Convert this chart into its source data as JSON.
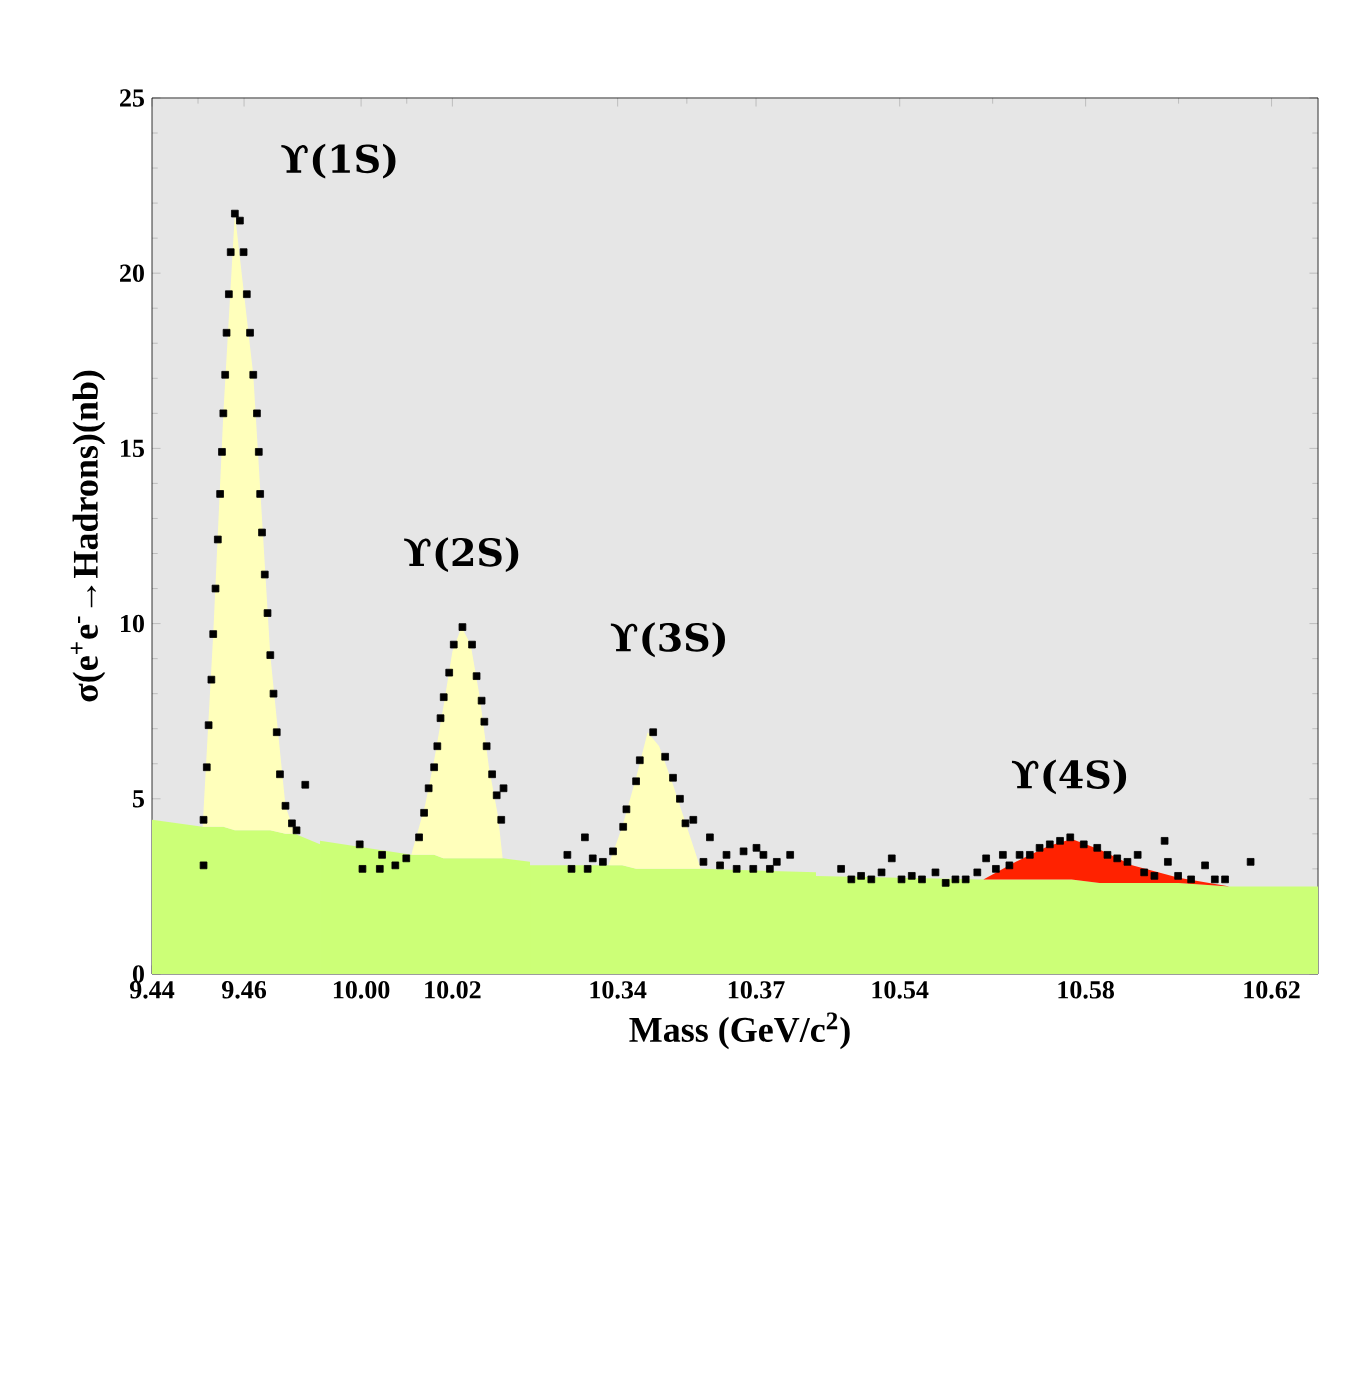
{
  "chart_data": [
    {
      "type": "area",
      "stacked": true,
      "ylabel": "σ(e$^{+}$e$^{-}$→Hadrons)(nb)",
      "xlim": [
        9.44,
        9.4765
      ],
      "xticks": [
        9.44,
        9.46
      ],
      "ylim": [
        0,
        25
      ],
      "yticks": [
        0,
        5,
        10,
        15,
        20,
        25
      ],
      "annotations": [
        {
          "text": "ϒ(1S)",
          "x": 9.4585,
          "y": 21.7
        }
      ],
      "series": [
        {
          "type": "area",
          "color": "#ccff77",
          "x": [
            9.44,
            9.451,
            9.4533,
            9.4555,
            9.458,
            9.462,
            9.4657,
            9.469,
            9.471,
            9.4765
          ],
          "values": [
            4.4,
            4.2,
            4.2,
            4.2,
            4.1,
            4.1,
            4.1,
            4.0,
            4.0,
            3.7
          ]
        },
        {
          "type": "area",
          "color": "#ffffbb",
          "x": [
            9.44,
            9.451,
            9.4533,
            9.4555,
            9.458,
            9.462,
            9.4657,
            9.469,
            9.471,
            9.4765
          ],
          "values": [
            0,
            0,
            5.5,
            11.8,
            17.6,
            13.0,
            5.0,
            0.8,
            0,
            0
          ]
        },
        {
          "type": "scatter",
          "color": "#000000",
          "marker": "square",
          "x": [
            9.4512,
            9.4512,
            9.4519,
            9.4523,
            9.4529,
            9.4533,
            9.4538,
            9.4543,
            9.4548,
            9.4552,
            9.4555,
            9.4559,
            9.4562,
            9.4567,
            9.4571,
            9.458,
            9.4591,
            9.4599,
            9.4606,
            9.4613,
            9.462,
            9.4628,
            9.4632,
            9.4635,
            9.4639,
            9.4645,
            9.4651,
            9.4657,
            9.4664,
            9.4671,
            9.4678,
            9.469,
            9.4704,
            9.4714,
            9.4733
          ],
          "values": [
            3.1,
            4.4,
            5.9,
            7.1,
            8.4,
            9.7,
            11.0,
            12.4,
            13.7,
            14.9,
            16.0,
            17.1,
            18.3,
            19.4,
            20.6,
            21.7,
            21.5,
            20.6,
            19.4,
            18.3,
            17.1,
            16.0,
            14.9,
            13.7,
            12.6,
            11.4,
            10.3,
            9.1,
            8.0,
            6.9,
            5.7,
            4.8,
            4.3,
            4.1,
            5.4
          ]
        }
      ]
    },
    {
      "type": "area",
      "stacked": true,
      "tick_labels": "x",
      "xlim": [
        9.991,
        10.037
      ],
      "xticks": [
        {
          "value": 10.0,
          "label": "10.00"
        },
        10.02
      ],
      "ylim": [
        0,
        25
      ],
      "yticks": [
        0,
        5,
        10,
        15,
        20,
        25
      ],
      "annotations": [
        {
          "text": "ϒ(2S)",
          "x": 10.0222,
          "y": 9.9
        }
      ],
      "series": [
        {
          "type": "area",
          "color": "#ccff77",
          "x": [
            9.991,
            10.011,
            10.014,
            10.016,
            10.018,
            10.02,
            10.022,
            10.024,
            10.026,
            10.028,
            10.03,
            10.031,
            10.037
          ],
          "values": [
            3.8,
            3.4,
            3.4,
            3.4,
            3.3,
            3.3,
            3.3,
            3.3,
            3.3,
            3.3,
            3.3,
            3.3,
            3.2
          ]
        },
        {
          "type": "area",
          "color": "#ffffbb",
          "x": [
            9.991,
            10.011,
            10.014,
            10.016,
            10.018,
            10.02,
            10.022,
            10.024,
            10.026,
            10.028,
            10.03,
            10.031,
            10.037
          ],
          "values": [
            0,
            0,
            1.4,
            2.7,
            4.3,
            5.9,
            6.6,
            6.1,
            4.6,
            2.6,
            1.2,
            0,
            0
          ]
        },
        {
          "type": "scatter",
          "color": "#000000",
          "marker": "square",
          "x": [
            9.9997,
            10.0003,
            10.0041,
            10.0046,
            10.0075,
            10.0099,
            10.0127,
            10.0138,
            10.0148,
            10.016,
            10.0167,
            10.0174,
            10.0181,
            10.0193,
            10.0203,
            10.0222,
            10.0243,
            10.0253,
            10.0264,
            10.027,
            10.0275,
            10.0287,
            10.0297,
            10.0312,
            10.0307
          ],
          "values": [
            3.7,
            3.0,
            3.0,
            3.4,
            3.1,
            3.3,
            3.9,
            4.6,
            5.3,
            5.9,
            6.5,
            7.3,
            7.9,
            8.6,
            9.4,
            9.9,
            9.4,
            8.5,
            7.8,
            7.2,
            6.5,
            5.7,
            5.1,
            5.3,
            4.4
          ]
        }
      ]
    },
    {
      "type": "area",
      "stacked": true,
      "tick_labels": "x",
      "xlabel": "Mass (GeV/c$^{2}$)",
      "xlim": [
        10.321,
        10.383
      ],
      "xticks": [
        10.34,
        10.37
      ],
      "ylim": [
        0,
        25
      ],
      "yticks": [
        0,
        5,
        10,
        15,
        20,
        25
      ],
      "annotations": [
        {
          "text": "ϒ(3S)",
          "x": 10.3477,
          "y": 6.9
        }
      ],
      "series": [
        {
          "type": "area",
          "color": "#ccff77",
          "x": [
            10.321,
            10.338,
            10.341,
            10.344,
            10.3465,
            10.349,
            10.352,
            10.355,
            10.358,
            10.383
          ],
          "values": [
            3.1,
            3.1,
            3.1,
            3.0,
            3.0,
            3.0,
            3.0,
            3.0,
            3.0,
            2.9
          ]
        },
        {
          "type": "area",
          "color": "#ffffbb",
          "x": [
            10.321,
            10.338,
            10.341,
            10.344,
            10.3465,
            10.349,
            10.352,
            10.355,
            10.358,
            10.383
          ],
          "values": [
            0,
            0,
            1.1,
            2.6,
            3.9,
            3.5,
            2.4,
            1.2,
            0,
            0
          ]
        },
        {
          "type": "scatter",
          "color": "#000000",
          "marker": "square",
          "x": [
            10.3291,
            10.33,
            10.3329,
            10.3335,
            10.3346,
            10.3368,
            10.339,
            10.3412,
            10.3419,
            10.344,
            10.3448,
            10.3477,
            10.3503,
            10.352,
            10.3535,
            10.3547,
            10.3564,
            10.36,
            10.3586,
            10.3622,
            10.3636,
            10.3658,
            10.3673,
            10.3694,
            10.3701,
            10.3716,
            10.373,
            10.3745,
            10.3774
          ],
          "values": [
            3.4,
            3.0,
            3.9,
            3.0,
            3.3,
            3.2,
            3.5,
            4.2,
            4.7,
            5.5,
            6.1,
            6.9,
            6.2,
            5.6,
            5.0,
            4.3,
            4.4,
            3.9,
            3.2,
            3.1,
            3.4,
            3.0,
            3.5,
            3.0,
            3.6,
            3.4,
            3.0,
            3.2,
            3.4
          ]
        }
      ]
    },
    {
      "type": "area",
      "stacked": true,
      "tick_labels": "x",
      "xlim": [
        10.522,
        10.63
      ],
      "xticks": [
        10.54,
        10.58,
        10.62
      ],
      "ylim": [
        0,
        25
      ],
      "yticks": [
        0,
        5,
        10,
        15,
        20,
        25
      ],
      "annotations": [
        {
          "text": "ϒ(4S)",
          "x": 10.5767,
          "y": 3.9
        }
      ],
      "series": [
        {
          "type": "area",
          "color": "#ccff77",
          "x": [
            10.522,
            10.558,
            10.565,
            10.572,
            10.577,
            10.583,
            10.59,
            10.6,
            10.611,
            10.63
          ],
          "values": [
            2.8,
            2.7,
            2.7,
            2.7,
            2.7,
            2.6,
            2.6,
            2.6,
            2.5,
            2.5
          ]
        },
        {
          "type": "area",
          "color": "#ff2200",
          "x": [
            10.522,
            10.558,
            10.565,
            10.572,
            10.577,
            10.583,
            10.59,
            10.6,
            10.611,
            10.63
          ],
          "values": [
            0,
            0,
            0.5,
            0.95,
            1.15,
            0.95,
            0.5,
            0.15,
            0,
            0
          ]
        },
        {
          "type": "scatter",
          "color": "#000000",
          "marker": "square",
          "x": [
            10.5274,
            10.5296,
            10.5317,
            10.5339,
            10.5361,
            10.5383,
            10.5404,
            10.5426,
            10.5448,
            10.5477,
            10.5499,
            10.552,
            10.5542,
            10.5567,
            10.5586,
            10.5607,
            10.5622,
            10.5636,
            10.5658,
            10.568,
            10.5701,
            10.5723,
            10.5745,
            10.5767,
            10.5796,
            10.5825,
            10.5847,
            10.5868,
            10.589,
            10.5912,
            10.5926,
            10.5948,
            10.597,
            10.5977,
            10.5999,
            10.6027,
            10.6057,
            10.6078,
            10.61,
            10.6155
          ],
          "values": [
            3.0,
            2.7,
            2.8,
            2.7,
            2.9,
            3.3,
            2.7,
            2.8,
            2.7,
            2.9,
            2.6,
            2.7,
            2.7,
            2.9,
            3.3,
            3.0,
            3.4,
            3.1,
            3.4,
            3.4,
            3.6,
            3.7,
            3.8,
            3.9,
            3.7,
            3.6,
            3.4,
            3.3,
            3.2,
            3.4,
            2.9,
            2.8,
            3.8,
            3.2,
            2.8,
            2.7,
            3.1,
            2.7,
            2.7,
            3.2
          ]
        }
      ]
    }
  ]
}
